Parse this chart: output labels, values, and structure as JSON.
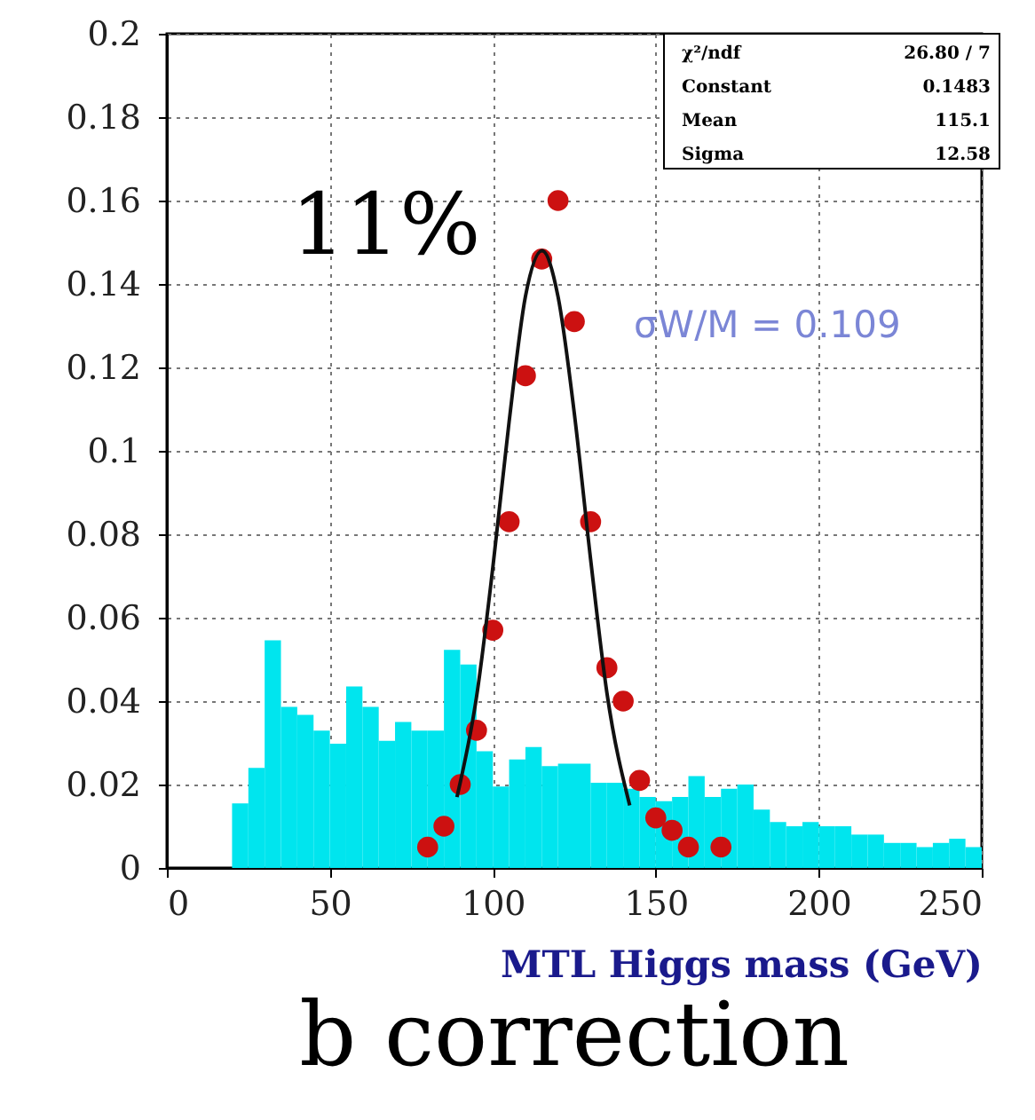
{
  "chart_data": {
    "type": "histogram",
    "title": "b correction",
    "xlabel": "MTL Higgs mass (GeV)",
    "bins": [
      20,
      25,
      30,
      35,
      40,
      45,
      50,
      55,
      60,
      65,
      70,
      75,
      80,
      85,
      90,
      95,
      100,
      105,
      110,
      115,
      120,
      125,
      130,
      135,
      140,
      145,
      150,
      155,
      160,
      165,
      170,
      175,
      180,
      185,
      190,
      195,
      200,
      205,
      210,
      215,
      220,
      225,
      230,
      235,
      240,
      245,
      250
    ],
    "values": [
      0.0155,
      0.024,
      0.0546,
      0.0386,
      0.0367,
      0.0329,
      0.0298,
      0.0435,
      0.0386,
      0.0305,
      0.035,
      0.0329,
      0.0329,
      0.0523,
      0.0488,
      0.028,
      0.0195,
      0.026,
      0.029,
      0.0244,
      0.025,
      0.025,
      0.0204,
      0.0204,
      0.019,
      0.017,
      0.016,
      0.017,
      0.022,
      0.017,
      0.019,
      0.02,
      0.014,
      0.011,
      0.01,
      0.011,
      0.01,
      0.01,
      0.008,
      0.008,
      0.006,
      0.006,
      0.005,
      0.006,
      0.007,
      0.005
    ],
    "color": "#00e5ee",
    "series": [
      {
        "type": "line",
        "color": "#111111",
        "x": [
          89,
          95,
          100,
          105,
          110,
          115.1,
          120,
          125,
          130,
          135,
          142
        ],
        "values": [
          0.017,
          0.041,
          0.072,
          0.107,
          0.137,
          0.148,
          0.137,
          0.109,
          0.074,
          0.042,
          0.015
        ]
      },
      {
        "type": "scatter",
        "marker": "circle",
        "color": "#cc1111",
        "x": [
          80,
          85,
          90,
          95,
          100,
          105,
          110,
          115,
          120,
          125,
          130,
          135,
          140,
          145,
          150,
          155,
          160,
          170
        ],
        "values": [
          0.005,
          0.01,
          0.02,
          0.033,
          0.057,
          0.083,
          0.118,
          0.146,
          0.16,
          0.131,
          0.083,
          0.048,
          0.04,
          0.021,
          0.012,
          0.009,
          0.005,
          0.005
        ]
      }
    ],
    "xlim": [
      0,
      250
    ],
    "xticks": [
      0,
      50,
      100,
      150,
      200,
      250
    ],
    "ylim": [
      0,
      0.2
    ],
    "yticks": [
      0,
      0.02,
      0.04,
      0.06,
      0.08,
      0.1,
      0.12,
      0.14,
      0.16,
      0.18,
      0.2
    ],
    "grid": true,
    "annotations": [
      "11%",
      "σW/M = 0.109",
      "χ²/ndf",
      "26.80 / 7",
      "Constant",
      "0.1483",
      "Mean",
      "115.1",
      "Sigma",
      "12.58"
    ]
  }
}
